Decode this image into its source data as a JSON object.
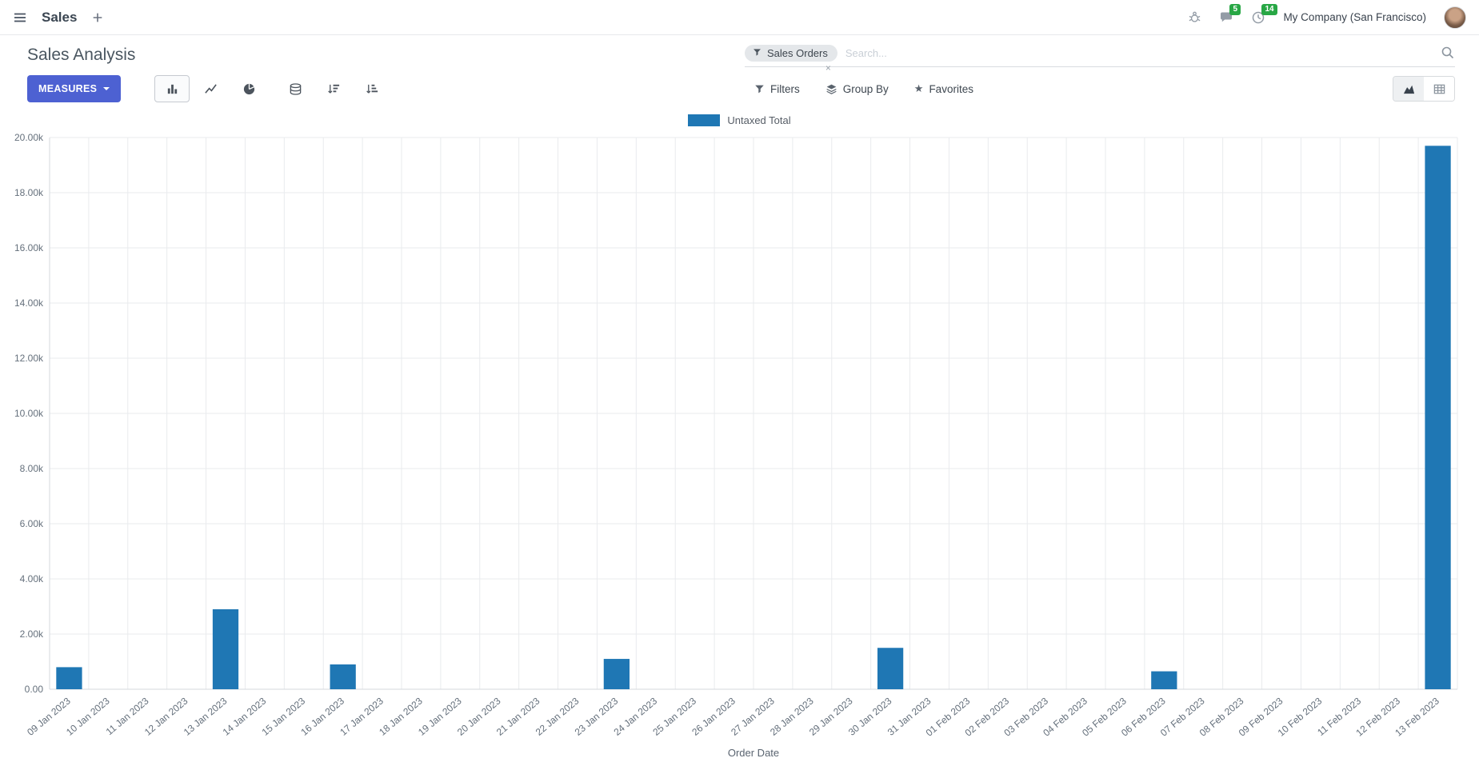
{
  "colors": {
    "primary": "#4d61d2",
    "bar": "#1f77b4",
    "badge": "#28a745"
  },
  "icons": {
    "star": "★",
    "facet_remove": "×"
  },
  "navbar": {
    "app_name": "Sales",
    "company": "My Company (San Francisco)",
    "message_badge": "5",
    "activity_badge": "14"
  },
  "control_panel": {
    "title": "Sales Analysis",
    "measures_label": "MEASURES",
    "search": {
      "facet_label": "Sales Orders",
      "placeholder": "Search..."
    },
    "menus": {
      "filters": "Filters",
      "group_by": "Group By",
      "favorites": "Favorites"
    }
  },
  "chart_data": {
    "type": "bar",
    "title": "",
    "xlabel": "Order Date",
    "ylabel": "",
    "ylim": [
      0,
      20000
    ],
    "grid": true,
    "legend_position": "top",
    "y_ticks": [
      {
        "value": 20000,
        "label": "20.00k"
      },
      {
        "value": 18000,
        "label": "18.00k"
      },
      {
        "value": 16000,
        "label": "16.00k"
      },
      {
        "value": 14000,
        "label": "14.00k"
      },
      {
        "value": 12000,
        "label": "12.00k"
      },
      {
        "value": 10000,
        "label": "10.00k"
      },
      {
        "value": 8000,
        "label": "8.00k"
      },
      {
        "value": 6000,
        "label": "6.00k"
      },
      {
        "value": 4000,
        "label": "4.00k"
      },
      {
        "value": 2000,
        "label": "2.00k"
      },
      {
        "value": 0,
        "label": "0.00"
      }
    ],
    "categories": [
      "09 Jan 2023",
      "10 Jan 2023",
      "11 Jan 2023",
      "12 Jan 2023",
      "13 Jan 2023",
      "14 Jan 2023",
      "15 Jan 2023",
      "16 Jan 2023",
      "17 Jan 2023",
      "18 Jan 2023",
      "19 Jan 2023",
      "20 Jan 2023",
      "21 Jan 2023",
      "22 Jan 2023",
      "23 Jan 2023",
      "24 Jan 2023",
      "25 Jan 2023",
      "26 Jan 2023",
      "27 Jan 2023",
      "28 Jan 2023",
      "29 Jan 2023",
      "30 Jan 2023",
      "31 Jan 2023",
      "01 Feb 2023",
      "02 Feb 2023",
      "03 Feb 2023",
      "04 Feb 2023",
      "05 Feb 2023",
      "06 Feb 2023",
      "07 Feb 2023",
      "08 Feb 2023",
      "09 Feb 2023",
      "10 Feb 2023",
      "11 Feb 2023",
      "12 Feb 2023",
      "13 Feb 2023"
    ],
    "series": [
      {
        "name": "Untaxed Total",
        "color": "#1f77b4",
        "values": [
          800,
          0,
          0,
          0,
          2900,
          0,
          0,
          900,
          0,
          0,
          0,
          0,
          0,
          0,
          1100,
          0,
          0,
          0,
          0,
          0,
          0,
          1500,
          0,
          0,
          0,
          0,
          0,
          0,
          650,
          0,
          0,
          0,
          0,
          0,
          0,
          19700
        ]
      }
    ]
  }
}
